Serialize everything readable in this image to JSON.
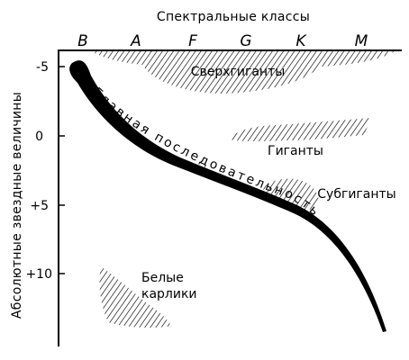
{
  "diagram": {
    "top_axis_title": "Спектральные классы",
    "left_axis_title": "Абсолютные звездные величины",
    "spectral_classes": [
      "B",
      "A",
      "F",
      "G",
      "K",
      "M"
    ],
    "magnitude_ticks": [
      "-5",
      "0",
      "+5",
      "+10"
    ],
    "regions": {
      "supergiants": "Сверхгиганты",
      "giants": "Гиганты",
      "subgiants": "Субгиганты",
      "white_dwarfs_line1": "Белые",
      "white_dwarfs_line2": "карлики"
    },
    "main_sequence_label": "Главная последовательность"
  }
}
